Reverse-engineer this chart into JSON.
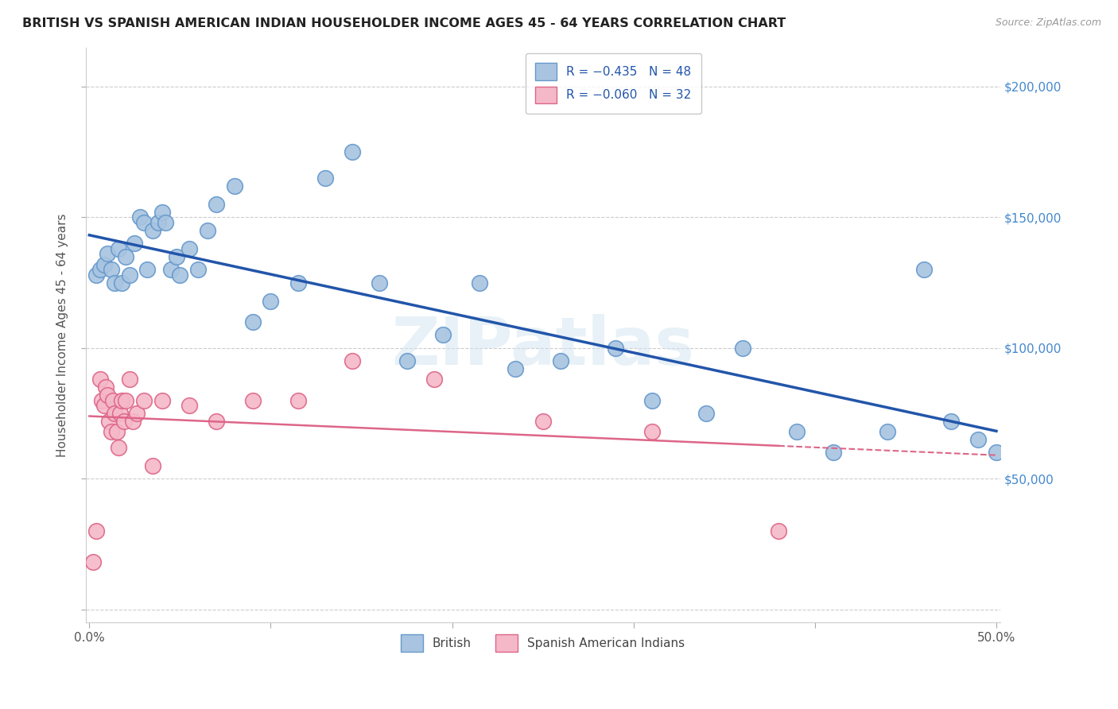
{
  "title": "BRITISH VS SPANISH AMERICAN INDIAN HOUSEHOLDER INCOME AGES 45 - 64 YEARS CORRELATION CHART",
  "source": "Source: ZipAtlas.com",
  "ylabel": "Householder Income Ages 45 - 64 years",
  "xlim": [
    -0.002,
    0.502
  ],
  "ylim": [
    -5000,
    215000
  ],
  "yticks": [
    0,
    50000,
    100000,
    150000,
    200000
  ],
  "ytick_labels": [
    "",
    "$50,000",
    "$100,000",
    "$150,000",
    "$200,000"
  ],
  "xticks": [
    0.0,
    0.1,
    0.2,
    0.3,
    0.4,
    0.5
  ],
  "xtick_labels": [
    "0.0%",
    "",
    "",
    "",
    "",
    "50.0%"
  ],
  "british_color": "#a8c4e0",
  "british_edge": "#6699cc",
  "british_trend_color": "#2255aa",
  "spanish_color": "#f5b8c8",
  "spanish_edge": "#dd6688",
  "spanish_trend_color": "#dd6688",
  "watermark": "ZIPatlas",
  "british_x": [
    0.004,
    0.006,
    0.008,
    0.01,
    0.012,
    0.014,
    0.016,
    0.018,
    0.02,
    0.022,
    0.025,
    0.028,
    0.03,
    0.032,
    0.035,
    0.038,
    0.04,
    0.042,
    0.045,
    0.048,
    0.05,
    0.055,
    0.06,
    0.065,
    0.07,
    0.08,
    0.09,
    0.1,
    0.115,
    0.13,
    0.145,
    0.16,
    0.175,
    0.195,
    0.215,
    0.235,
    0.26,
    0.29,
    0.31,
    0.34,
    0.36,
    0.39,
    0.41,
    0.44,
    0.46,
    0.475,
    0.49,
    0.5
  ],
  "british_y": [
    128000,
    130000,
    132000,
    136000,
    130000,
    125000,
    138000,
    125000,
    135000,
    128000,
    140000,
    150000,
    148000,
    130000,
    145000,
    148000,
    152000,
    148000,
    130000,
    135000,
    128000,
    138000,
    130000,
    145000,
    155000,
    162000,
    110000,
    118000,
    125000,
    165000,
    175000,
    125000,
    95000,
    105000,
    125000,
    92000,
    95000,
    100000,
    80000,
    75000,
    100000,
    68000,
    60000,
    68000,
    130000,
    72000,
    65000,
    60000
  ],
  "spanish_x": [
    0.002,
    0.004,
    0.006,
    0.007,
    0.008,
    0.009,
    0.01,
    0.011,
    0.012,
    0.013,
    0.014,
    0.015,
    0.016,
    0.017,
    0.018,
    0.019,
    0.02,
    0.022,
    0.024,
    0.026,
    0.03,
    0.035,
    0.04,
    0.055,
    0.07,
    0.09,
    0.115,
    0.145,
    0.19,
    0.25,
    0.31,
    0.38
  ],
  "spanish_y": [
    18000,
    30000,
    88000,
    80000,
    78000,
    85000,
    82000,
    72000,
    68000,
    80000,
    75000,
    68000,
    62000,
    75000,
    80000,
    72000,
    80000,
    88000,
    72000,
    75000,
    80000,
    55000,
    80000,
    78000,
    72000,
    80000,
    80000,
    95000,
    88000,
    72000,
    68000,
    30000
  ]
}
